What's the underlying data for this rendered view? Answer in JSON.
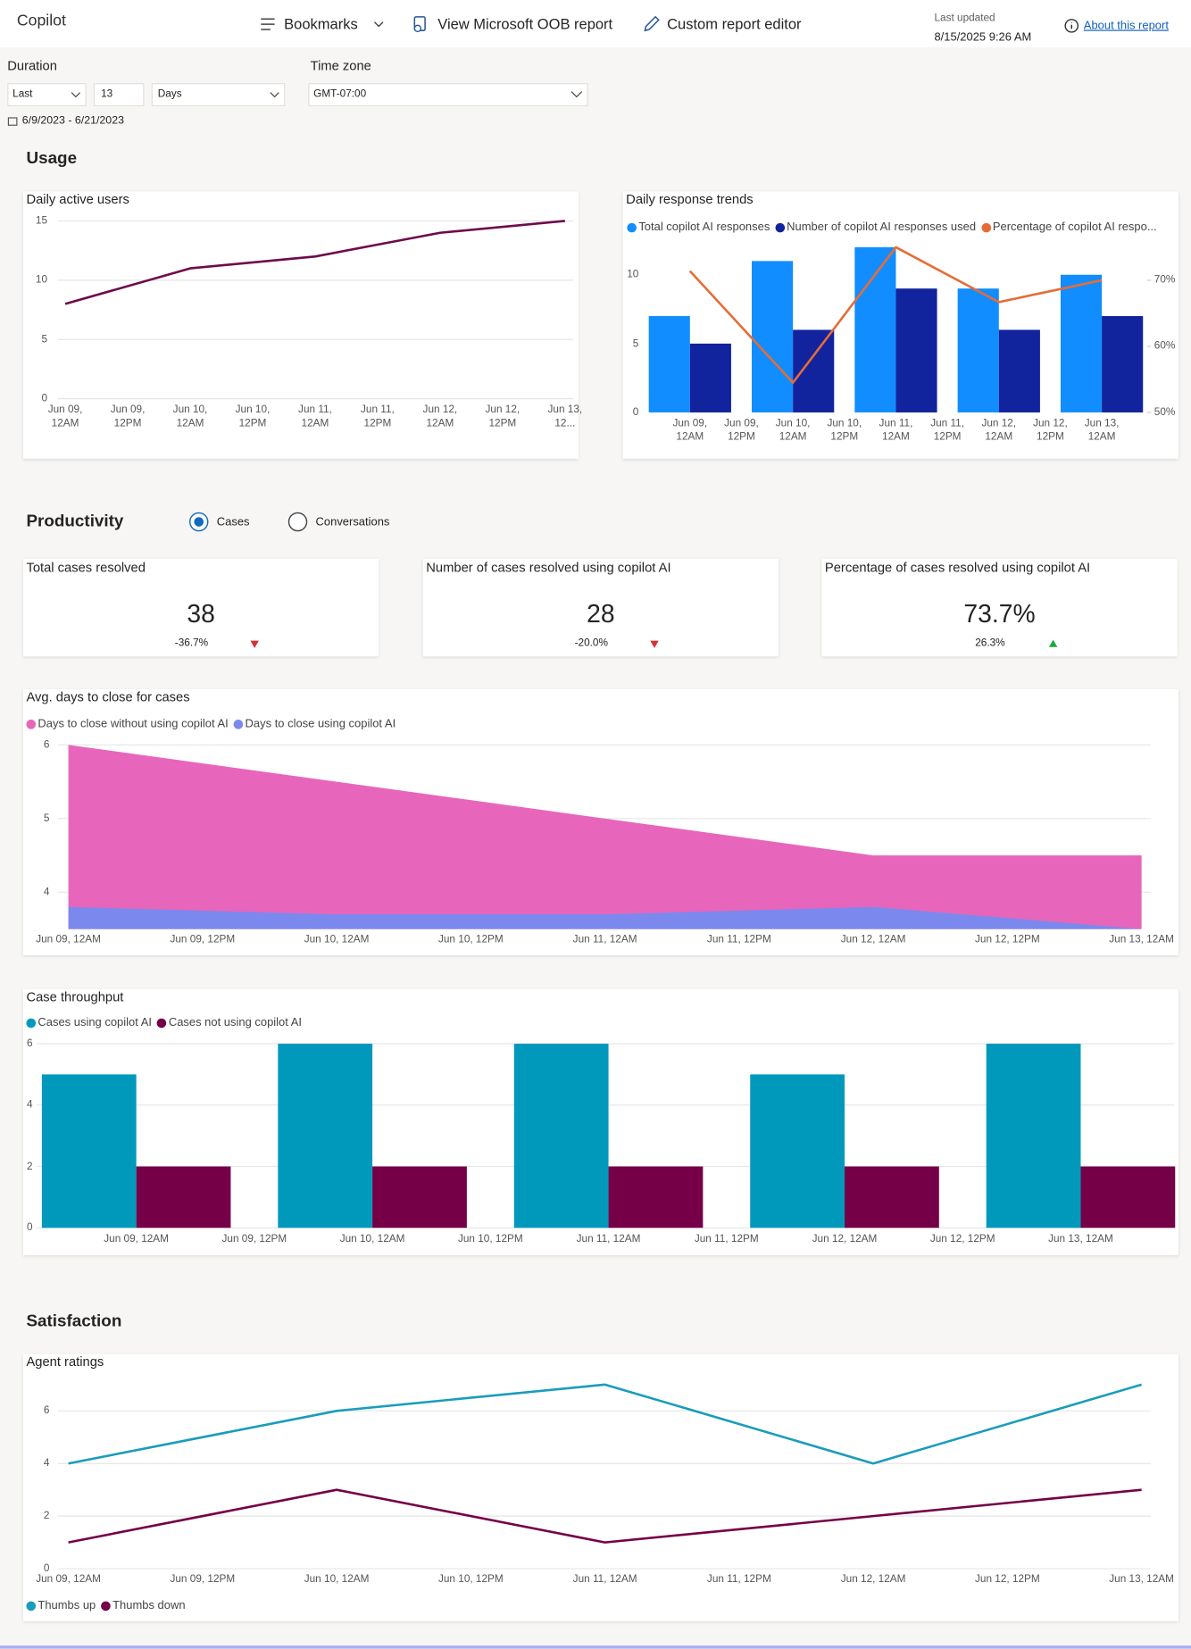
{
  "header": {
    "app": "Copilot",
    "bookmarks": "Bookmarks",
    "oob_report": "View Microsoft OOB report",
    "editor": "Custom report editor",
    "last_updated_label": "Last updated",
    "last_updated": "8/15/2025 9:26 AM",
    "about": "About this report"
  },
  "filters": {
    "duration_label": "Duration",
    "duration_mode": "Last",
    "duration_count": "13",
    "duration_unit": "Days",
    "timezone_label": "Time zone",
    "timezone": "GMT-07:00",
    "date_range": "6/9/2023 - 6/21/2023"
  },
  "sections": {
    "usage": "Usage",
    "productivity": "Productivity",
    "satisfaction": "Satisfaction"
  },
  "productivity_toggle": {
    "options": [
      "Cases",
      "Conversations"
    ],
    "selected": 0
  },
  "kpis": [
    {
      "title": "Total cases resolved",
      "value": "38",
      "change": "-36.7%",
      "trend": "down"
    },
    {
      "title": "Number of cases resolved using copilot AI",
      "value": "28",
      "change": "-20.0%",
      "trend": "down"
    },
    {
      "title": "Percentage of cases resolved using copilot AI",
      "value": "73.7%",
      "change": "26.3%",
      "trend": "up"
    }
  ],
  "chart_data": [
    {
      "type": "line",
      "title": "Daily active users",
      "x": [
        0,
        24,
        48,
        72,
        96
      ],
      "values": [
        8,
        11,
        12,
        14,
        15
      ],
      "color": "#6e0a4c",
      "xlim": [
        0,
        96
      ],
      "xticks": [
        {
          "value": 0,
          "label": "Jun 09, 12AM"
        },
        {
          "value": 12,
          "label": "Jun 09, 12PM"
        },
        {
          "value": 24,
          "label": "Jun 10, 12AM"
        },
        {
          "value": 36,
          "label": "Jun 10, 12PM"
        },
        {
          "value": 48,
          "label": "Jun 11, 12AM"
        },
        {
          "value": 60,
          "label": "Jun 11, 12PM"
        },
        {
          "value": 72,
          "label": "Jun 12, 12AM"
        },
        {
          "value": 84,
          "label": "Jun 12, 12PM"
        },
        {
          "value": 96,
          "label": "Jun 13, 12..."
        }
      ],
      "ylim": [
        0,
        15
      ],
      "yticks": [
        0,
        5,
        10,
        15
      ],
      "grid": true
    },
    {
      "type": "bar",
      "title": "Daily response trends",
      "x": [
        0,
        24,
        48,
        72,
        96
      ],
      "series": [
        {
          "name": "Total copilot AI responses",
          "color": "#118dff",
          "values": [
            7,
            11,
            12,
            9,
            10
          ]
        },
        {
          "name": "Number of copilot AI responses used",
          "color": "#12239e",
          "values": [
            5,
            6,
            9,
            6,
            7
          ]
        },
        {
          "name": "Percentage of copilot AI respo...",
          "color": "#e66c37",
          "type": "line",
          "axis": "y2",
          "values": [
            71.4,
            54.5,
            75,
            66.7,
            70
          ]
        }
      ],
      "xlim": [
        -10,
        106
      ],
      "xticks": [
        {
          "value": 0,
          "label": "Jun 09, 12AM"
        },
        {
          "value": 12,
          "label": "Jun 09, 12PM"
        },
        {
          "value": 24,
          "label": "Jun 10, 12AM"
        },
        {
          "value": 36,
          "label": "Jun 10, 12PM"
        },
        {
          "value": 48,
          "label": "Jun 11, 12AM"
        },
        {
          "value": 60,
          "label": "Jun 11, 12PM"
        },
        {
          "value": 72,
          "label": "Jun 12, 12AM"
        },
        {
          "value": 84,
          "label": "Jun 12, 12PM"
        },
        {
          "value": 96,
          "label": "Jun 13, 12AM"
        }
      ],
      "ylim": [
        0,
        12
      ],
      "yticks": [
        0,
        5,
        10
      ],
      "y2lim": [
        50,
        75
      ],
      "y2ticks": [
        {
          "value": 50,
          "label": "50%"
        },
        {
          "value": 60,
          "label": "60%"
        },
        {
          "value": 70,
          "label": "70%"
        }
      ],
      "grid": false,
      "legend": "top"
    },
    {
      "type": "area",
      "title": "Avg. days to close for cases",
      "x": [
        0,
        24,
        48,
        72,
        96
      ],
      "series": [
        {
          "name": "Days to close without using copilot AI",
          "color": "#e766bb",
          "values": [
            6,
            5.5,
            5,
            4.5,
            4.5
          ]
        },
        {
          "name": "Days to close using copilot AI",
          "color": "#7b88ee",
          "values": [
            3.8,
            3.7,
            3.7,
            3.8,
            3.5
          ]
        }
      ],
      "xlim": [
        0,
        96
      ],
      "xticks": [
        {
          "value": 0,
          "label": "Jun 09, 12AM"
        },
        {
          "value": 12,
          "label": "Jun 09, 12PM"
        },
        {
          "value": 24,
          "label": "Jun 10, 12AM"
        },
        {
          "value": 36,
          "label": "Jun 10, 12PM"
        },
        {
          "value": 48,
          "label": "Jun 11, 12AM"
        },
        {
          "value": 60,
          "label": "Jun 11, 12PM"
        },
        {
          "value": 72,
          "label": "Jun 12, 12AM"
        },
        {
          "value": 84,
          "label": "Jun 12, 12PM"
        },
        {
          "value": 96,
          "label": "Jun 13, 12AM"
        }
      ],
      "ylim": [
        3.5,
        6
      ],
      "yticks": [
        4,
        5,
        6
      ],
      "grid": true,
      "legend": "top"
    },
    {
      "type": "bar",
      "title": "Case throughput",
      "x": [
        0,
        24,
        48,
        72,
        96
      ],
      "series": [
        {
          "name": "Cases using copilot AI",
          "color": "#0099bc",
          "values": [
            5,
            6,
            6,
            5,
            6
          ]
        },
        {
          "name": "Cases not using copilot AI",
          "color": "#750048",
          "values": [
            2,
            2,
            2,
            2,
            2
          ]
        }
      ],
      "xlim": [
        -11.5,
        105.5
      ],
      "xticks": [
        {
          "value": 0,
          "label": "Jun 09, 12AM"
        },
        {
          "value": 12,
          "label": "Jun 09, 12PM"
        },
        {
          "value": 24,
          "label": "Jun 10, 12AM"
        },
        {
          "value": 36,
          "label": "Jun 10, 12PM"
        },
        {
          "value": 48,
          "label": "Jun 11, 12AM"
        },
        {
          "value": 60,
          "label": "Jun 11, 12PM"
        },
        {
          "value": 72,
          "label": "Jun 12, 12AM"
        },
        {
          "value": 84,
          "label": "Jun 12, 12PM"
        },
        {
          "value": 96,
          "label": "Jun 13, 12AM"
        }
      ],
      "ylim": [
        0,
        6
      ],
      "yticks": [
        0,
        2,
        4,
        6
      ],
      "grid": true,
      "legend": "top"
    },
    {
      "type": "line",
      "title": "Agent ratings",
      "x": [
        0,
        24,
        48,
        72,
        96
      ],
      "series": [
        {
          "name": "Thumbs up",
          "color": "#1a9cbb",
          "values": [
            4,
            6,
            7,
            4,
            7
          ]
        },
        {
          "name": "Thumbs down",
          "color": "#750048",
          "values": [
            1,
            3,
            1,
            2,
            3
          ]
        }
      ],
      "xlim": [
        0,
        96
      ],
      "xticks": [
        {
          "value": 0,
          "label": "Jun 09, 12AM"
        },
        {
          "value": 12,
          "label": "Jun 09, 12PM"
        },
        {
          "value": 24,
          "label": "Jun 10, 12AM"
        },
        {
          "value": 36,
          "label": "Jun 10, 12PM"
        },
        {
          "value": 48,
          "label": "Jun 11, 12AM"
        },
        {
          "value": 60,
          "label": "Jun 11, 12PM"
        },
        {
          "value": 72,
          "label": "Jun 12, 12AM"
        },
        {
          "value": 84,
          "label": "Jun 12, 12PM"
        },
        {
          "value": 96,
          "label": "Jun 13, 12AM"
        }
      ],
      "ylim": [
        0,
        7
      ],
      "yticks": [
        0,
        2,
        4,
        6
      ],
      "grid": true,
      "legend": "bottom"
    }
  ]
}
